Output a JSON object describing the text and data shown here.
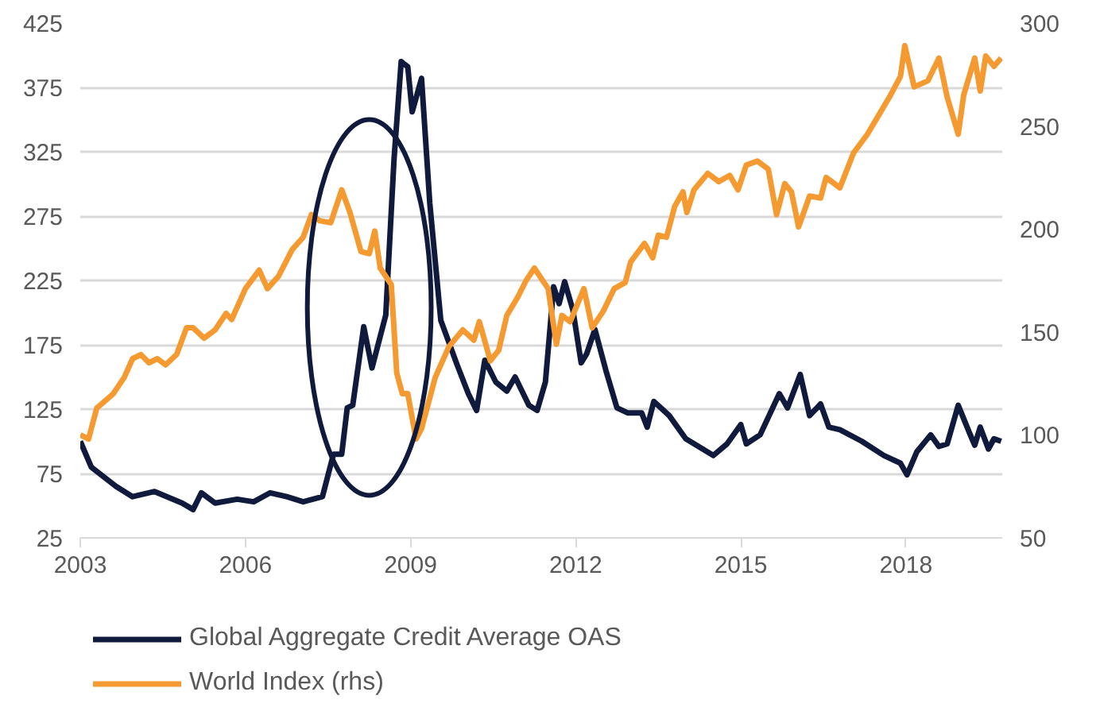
{
  "chart_data": {
    "type": "line",
    "xlim": [
      2003,
      2019.75
    ],
    "xticks": [
      2003,
      2006,
      2009,
      2012,
      2015,
      2018
    ],
    "ylim": [
      25,
      425
    ],
    "yticks": [
      25,
      75,
      125,
      175,
      225,
      275,
      325,
      375,
      425
    ],
    "y2lim": [
      50,
      300
    ],
    "y2ticks": [
      50,
      100,
      150,
      200,
      250,
      300
    ],
    "grid": "y",
    "legend": "bottom",
    "line_style": "solid",
    "series": [
      {
        "name": "Global Aggregate Credit Average OAS",
        "color": "#0f1a3c",
        "x": [
          2003.0,
          2003.2,
          2003.65,
          2003.95,
          2004.35,
          2004.85,
          2005.05,
          2005.2,
          2005.45,
          2005.85,
          2006.15,
          2006.45,
          2006.75,
          2007.05,
          2007.4,
          2007.6,
          2007.75,
          2007.85,
          2007.95,
          2008.15,
          2008.3,
          2008.55,
          2008.7,
          2008.83,
          2008.95,
          2009.03,
          2009.2,
          2009.35,
          2009.55,
          2009.85,
          2010.05,
          2010.2,
          2010.35,
          2010.55,
          2010.75,
          2010.9,
          2011.15,
          2011.3,
          2011.45,
          2011.6,
          2011.7,
          2011.8,
          2011.95,
          2012.1,
          2012.2,
          2012.35,
          2012.55,
          2012.75,
          2012.95,
          2013.2,
          2013.3,
          2013.42,
          2013.7,
          2014.0,
          2014.5,
          2014.75,
          2015.0,
          2015.1,
          2015.35,
          2015.7,
          2015.85,
          2016.08,
          2016.25,
          2016.45,
          2016.6,
          2016.8,
          2017.2,
          2017.6,
          2017.9,
          2018.02,
          2018.2,
          2018.45,
          2018.6,
          2018.75,
          2018.95,
          2019.15,
          2019.25,
          2019.35,
          2019.5,
          2019.6,
          2019.73
        ],
        "values": [
          100,
          80,
          65,
          57,
          61,
          52,
          47,
          60,
          52,
          55,
          53,
          60,
          57,
          53,
          57,
          90,
          90,
          126,
          128,
          189,
          157,
          198,
          319,
          395,
          391,
          356,
          382,
          285,
          194,
          159,
          137,
          124,
          163,
          146,
          139,
          150,
          128,
          124,
          146,
          220,
          207,
          224,
          202,
          161,
          168,
          187,
          155,
          126,
          122,
          122,
          111,
          131,
          120,
          102,
          89,
          98,
          113,
          98,
          105,
          137,
          126,
          152,
          120,
          129,
          111,
          109,
          100,
          89,
          83,
          74,
          92,
          105,
          96,
          98,
          128,
          107,
          97,
          111,
          94,
          102,
          100
        ]
      },
      {
        "name": "World Index (rhs)",
        "color": "#f59a31",
        "axis": "y2",
        "x": [
          2003.0,
          2003.15,
          2003.3,
          2003.6,
          2003.8,
          2003.95,
          2004.1,
          2004.25,
          2004.4,
          2004.55,
          2004.75,
          2004.93,
          2005.05,
          2005.25,
          2005.45,
          2005.65,
          2005.75,
          2006.0,
          2006.25,
          2006.4,
          2006.6,
          2006.85,
          2007.05,
          2007.2,
          2007.35,
          2007.55,
          2007.75,
          2007.9,
          2008.1,
          2008.25,
          2008.35,
          2008.45,
          2008.65,
          2008.75,
          2008.85,
          2008.95,
          2009.1,
          2009.2,
          2009.45,
          2009.7,
          2009.95,
          2010.15,
          2010.25,
          2010.45,
          2010.6,
          2010.75,
          2010.95,
          2011.1,
          2011.25,
          2011.5,
          2011.65,
          2011.75,
          2011.9,
          2012.15,
          2012.3,
          2012.5,
          2012.7,
          2012.9,
          2013.0,
          2013.25,
          2013.4,
          2013.5,
          2013.65,
          2013.8,
          2013.95,
          2014.02,
          2014.15,
          2014.4,
          2014.6,
          2014.8,
          2014.95,
          2015.1,
          2015.3,
          2015.5,
          2015.65,
          2015.8,
          2015.92,
          2016.05,
          2016.25,
          2016.45,
          2016.55,
          2016.8,
          2017.05,
          2017.3,
          2017.5,
          2017.7,
          2017.9,
          2017.98,
          2018.15,
          2018.4,
          2018.6,
          2018.75,
          2018.95,
          2019.05,
          2019.25,
          2019.35,
          2019.45,
          2019.6,
          2019.73
        ],
        "values": [
          100,
          98,
          113,
          120,
          128,
          137,
          139,
          135,
          137,
          134,
          139,
          152,
          152,
          147,
          151,
          159,
          156,
          171,
          180,
          171,
          177,
          190,
          196,
          207,
          204,
          203,
          219,
          208,
          189,
          188,
          199,
          181,
          173,
          130,
          120,
          120,
          98,
          103,
          128,
          143,
          151,
          146,
          155,
          136,
          141,
          158,
          167,
          175,
          181,
          171,
          144,
          158,
          155,
          171,
          152,
          160,
          171,
          174,
          184,
          193,
          186,
          197,
          196,
          211,
          218,
          208,
          219,
          227,
          223,
          226,
          219,
          231,
          233,
          229,
          207,
          222,
          218,
          201,
          216,
          215,
          225,
          220,
          237,
          246,
          255,
          264,
          274,
          289,
          269,
          272,
          283,
          264,
          246,
          265,
          283,
          267,
          284,
          279,
          283
        ]
      }
    ]
  }
}
